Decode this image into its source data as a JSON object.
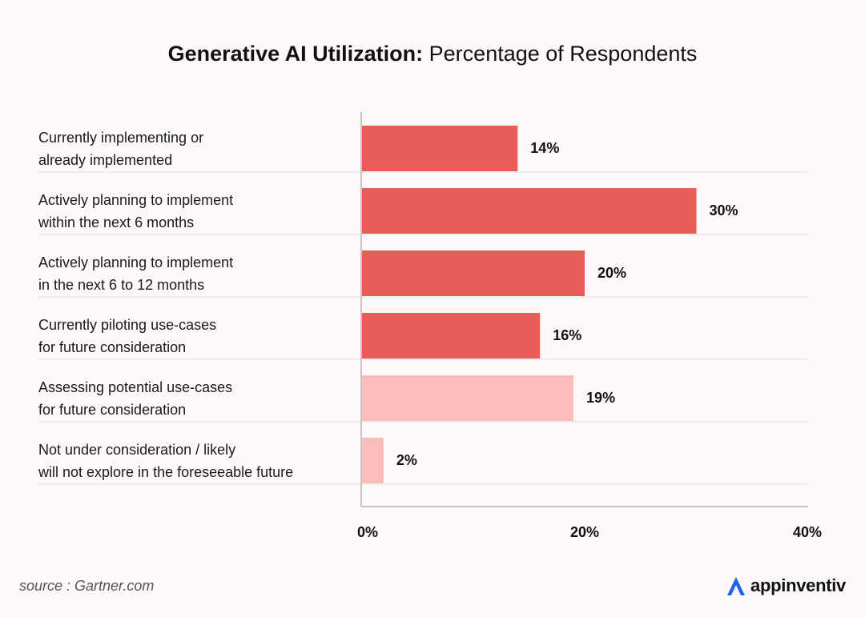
{
  "header": {
    "title_bold": "Generative AI Utilization:",
    "title_rest": " Percentage of Respondents"
  },
  "chart_data": {
    "type": "bar",
    "orientation": "horizontal",
    "categories": [
      [
        "Currently implementing or",
        "already implemented"
      ],
      [
        "Actively planning to implement",
        "within the next 6 months"
      ],
      [
        "Actively planning to implement",
        "in the next 6 to 12 months"
      ],
      [
        "Currently piloting use-cases",
        "for future consideration"
      ],
      [
        "Assessing potential use-cases",
        "for future consideration"
      ],
      [
        "Not under consideration / likely",
        "will not explore in the foreseeable future"
      ]
    ],
    "values": [
      14,
      30,
      20,
      16,
      19,
      2
    ],
    "value_labels": [
      "14%",
      "30%",
      "20%",
      "16%",
      "19%",
      "2%"
    ],
    "bar_colors": [
      "#ea5c58",
      "#ea5c58",
      "#ea5c58",
      "#ea5c58",
      "#fbbcbc",
      "#fbbcbc"
    ],
    "xlim": [
      0,
      40
    ],
    "ticks": [
      0,
      20,
      40
    ],
    "tick_labels": [
      "0%",
      "20%",
      "40%"
    ],
    "grid": false,
    "legend": "none"
  },
  "footer": {
    "source": "source : Gartner.com",
    "brand": "appinventiv",
    "brand_icon": "appinventiv-logo-icon",
    "brand_color": "#1e63e9"
  }
}
